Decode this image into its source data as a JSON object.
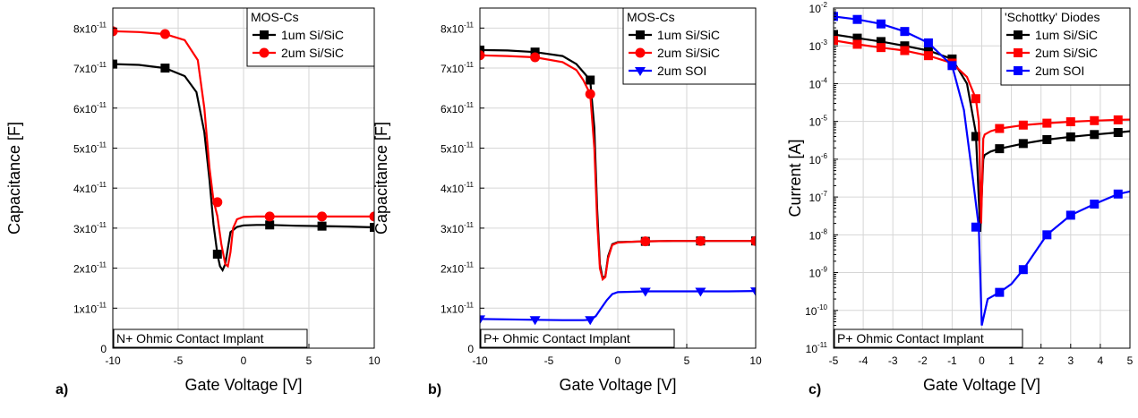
{
  "chart_data": [
    {
      "type": "line",
      "panel_label": "a)",
      "xlabel": "Gate Voltage [V]",
      "ylabel": "Capacitance [F]",
      "xlim": [
        -10,
        10
      ],
      "ylim": [
        0,
        8.5e-11
      ],
      "yscale": "linear",
      "grid": true,
      "x_ticks": [
        -10,
        -5,
        0,
        5,
        10
      ],
      "x_tick_labels": [
        "-10",
        "-5",
        "0",
        "5",
        "10"
      ],
      "y_ticks": [
        0,
        1e-11,
        2e-11,
        3e-11,
        4e-11,
        5e-11,
        6e-11,
        7e-11,
        8e-11
      ],
      "y_tick_labels": [
        {
          "base": "0",
          "exp": ""
        },
        {
          "base": "1x10",
          "exp": "-11"
        },
        {
          "base": "2x10",
          "exp": "-11"
        },
        {
          "base": "3x10",
          "exp": "-11"
        },
        {
          "base": "4x10",
          "exp": "-11"
        },
        {
          "base": "5x10",
          "exp": "-11"
        },
        {
          "base": "6x10",
          "exp": "-11"
        },
        {
          "base": "7x10",
          "exp": "-11"
        },
        {
          "base": "8x10",
          "exp": "-11"
        }
      ],
      "legend_title": "MOS-Cs",
      "legend_position": "top-right",
      "annotation": "N+ Ohmic Contact Implant",
      "series": [
        {
          "name": "1um Si/SiC",
          "color": "#000000",
          "marker": "square",
          "x": [
            -10,
            -8,
            -6,
            -4.5,
            -3.6,
            -3.0,
            -2.6,
            -2.3,
            -2.0,
            -1.8,
            -1.6,
            -1.4,
            -1.2,
            -1.0,
            -0.5,
            0,
            1,
            2,
            4,
            6,
            8,
            10
          ],
          "y": [
            7.1e-11,
            7.08e-11,
            7e-11,
            6.8e-11,
            6.4e-11,
            5.4e-11,
            4.2e-11,
            3.1e-11,
            2.35e-11,
            2.05e-11,
            1.95e-11,
            2.1e-11,
            2.5e-11,
            2.9e-11,
            3.03e-11,
            3.07e-11,
            3.08e-11,
            3.08e-11,
            3.06e-11,
            3.05e-11,
            3.04e-11,
            3.02e-11
          ],
          "markers_x": [
            -10,
            -6,
            -2,
            2,
            6,
            10
          ],
          "markers_y": [
            7.1e-11,
            7e-11,
            2.35e-11,
            3.08e-11,
            3.05e-11,
            3.02e-11
          ]
        },
        {
          "name": "2um Si/SiC",
          "color": "#ff0000",
          "marker": "circle",
          "x": [
            -10,
            -8,
            -6,
            -4.5,
            -3.5,
            -3.0,
            -2.6,
            -2.3,
            -2.0,
            -1.7,
            -1.4,
            -1.2,
            -1.0,
            -0.8,
            -0.5,
            0,
            1,
            2,
            4,
            6,
            8,
            10
          ],
          "y": [
            7.92e-11,
            7.9e-11,
            7.85e-11,
            7.7e-11,
            7.2e-11,
            6e-11,
            4.5e-11,
            3.7e-11,
            3.3e-11,
            2.6e-11,
            2.1e-11,
            2.05e-11,
            2.4e-11,
            3e-11,
            3.22e-11,
            3.28e-11,
            3.29e-11,
            3.29e-11,
            3.29e-11,
            3.29e-11,
            3.29e-11,
            3.29e-11
          ],
          "markers_x": [
            -10,
            -6,
            -2,
            2,
            6,
            10
          ],
          "markers_y": [
            7.92e-11,
            7.85e-11,
            3.65e-11,
            3.29e-11,
            3.29e-11,
            3.29e-11
          ]
        }
      ]
    },
    {
      "type": "line",
      "panel_label": "b)",
      "xlabel": "Gate Voltage [V]",
      "ylabel": "Capacitance [F]",
      "xlim": [
        -10,
        10
      ],
      "ylim": [
        0,
        8.5e-11
      ],
      "yscale": "linear",
      "grid": true,
      "x_ticks": [
        -10,
        -5,
        0,
        5,
        10
      ],
      "x_tick_labels": [
        "-10",
        "-5",
        "0",
        "5",
        "10"
      ],
      "y_ticks": [
        0,
        1e-11,
        2e-11,
        3e-11,
        4e-11,
        5e-11,
        6e-11,
        7e-11,
        8e-11
      ],
      "y_tick_labels": [
        {
          "base": "0",
          "exp": ""
        },
        {
          "base": "1x10",
          "exp": "-11"
        },
        {
          "base": "2x10",
          "exp": "-11"
        },
        {
          "base": "3x10",
          "exp": "-11"
        },
        {
          "base": "4x10",
          "exp": "-11"
        },
        {
          "base": "5x10",
          "exp": "-11"
        },
        {
          "base": "6x10",
          "exp": "-11"
        },
        {
          "base": "7x10",
          "exp": "-11"
        },
        {
          "base": "8x10",
          "exp": "-11"
        }
      ],
      "legend_title": "MOS-Cs",
      "legend_position": "top-right",
      "annotation": "P+ Ohmic Contact Implant",
      "series": [
        {
          "name": "1um Si/SiC",
          "color": "#000000",
          "marker": "square",
          "x": [
            -10,
            -8,
            -6,
            -4,
            -3,
            -2.5,
            -2.0,
            -1.7,
            -1.5,
            -1.3,
            -1.1,
            -0.9,
            -0.7,
            -0.4,
            0,
            1,
            2,
            4,
            6,
            8,
            10
          ],
          "y": [
            7.45e-11,
            7.44e-11,
            7.4e-11,
            7.3e-11,
            7.1e-11,
            6.9e-11,
            6.7e-11,
            5.5e-11,
            3.5e-11,
            2.1e-11,
            1.75e-11,
            1.8e-11,
            2.3e-11,
            2.6e-11,
            2.65e-11,
            2.66e-11,
            2.67e-11,
            2.68e-11,
            2.68e-11,
            2.68e-11,
            2.68e-11
          ],
          "markers_x": [
            -10,
            -6,
            -2,
            2,
            6,
            10
          ],
          "markers_y": [
            7.45e-11,
            7.4e-11,
            6.7e-11,
            2.67e-11,
            2.68e-11,
            2.68e-11
          ]
        },
        {
          "name": "2um Si/SiC",
          "color": "#ff0000",
          "marker": "circle",
          "x": [
            -10,
            -8,
            -6,
            -4,
            -3,
            -2.5,
            -2.0,
            -1.7,
            -1.5,
            -1.3,
            -1.1,
            -0.9,
            -0.7,
            -0.4,
            0,
            1,
            2,
            4,
            6,
            8,
            10
          ],
          "y": [
            7.32e-11,
            7.3e-11,
            7.27e-11,
            7.15e-11,
            6.95e-11,
            6.7e-11,
            6.35e-11,
            5e-11,
            3.2e-11,
            2e-11,
            1.72e-11,
            1.78e-11,
            2.25e-11,
            2.58e-11,
            2.64e-11,
            2.66e-11,
            2.67e-11,
            2.68e-11,
            2.68e-11,
            2.68e-11,
            2.68e-11
          ],
          "markers_x": [
            -10,
            -6,
            -2,
            2,
            6,
            10
          ],
          "markers_y": [
            7.32e-11,
            7.27e-11,
            6.35e-11,
            2.67e-11,
            2.68e-11,
            2.68e-11
          ]
        },
        {
          "name": "2um SOI",
          "color": "#0000ff",
          "marker": "triangle-down",
          "x": [
            -10,
            -8,
            -6,
            -4,
            -2.5,
            -2.0,
            -1.6,
            -1.2,
            -0.8,
            -0.4,
            0,
            1,
            2,
            4,
            6,
            8,
            10
          ],
          "y": [
            7.3e-12,
            7.2e-12,
            7.1e-12,
            7e-12,
            7e-12,
            7.1e-12,
            8e-12,
            1e-11,
            1.2e-11,
            1.35e-11,
            1.4e-11,
            1.41e-11,
            1.42e-11,
            1.42e-11,
            1.42e-11,
            1.42e-11,
            1.43e-11
          ],
          "markers_x": [
            -10,
            -6,
            -2,
            2,
            6,
            10
          ],
          "markers_y": [
            7.3e-12,
            7.1e-12,
            7.1e-12,
            1.42e-11,
            1.42e-11,
            1.43e-11
          ]
        }
      ]
    },
    {
      "type": "line",
      "panel_label": "c)",
      "xlabel": "Gate Voltage [V]",
      "ylabel": "Current [A]",
      "xlim": [
        -5,
        5
      ],
      "ylim": [
        1e-11,
        0.01
      ],
      "yscale": "log",
      "grid": true,
      "x_ticks": [
        -5,
        -4,
        -3,
        -2,
        -1,
        0,
        1,
        2,
        3,
        4,
        5
      ],
      "x_tick_labels": [
        "-5",
        "-4",
        "-3",
        "-2",
        "-1",
        "0",
        "1",
        "2",
        "3",
        "4",
        "5"
      ],
      "y_ticks": [
        -11,
        -10,
        -9,
        -8,
        -7,
        -6,
        -5,
        -4,
        -3,
        -2
      ],
      "y_tick_labels": [
        {
          "base": "10",
          "exp": "-11"
        },
        {
          "base": "10",
          "exp": "-10"
        },
        {
          "base": "10",
          "exp": "-9"
        },
        {
          "base": "10",
          "exp": "-8"
        },
        {
          "base": "10",
          "exp": "-7"
        },
        {
          "base": "10",
          "exp": "-6"
        },
        {
          "base": "10",
          "exp": "-5"
        },
        {
          "base": "10",
          "exp": "-4"
        },
        {
          "base": "10",
          "exp": "-3"
        },
        {
          "base": "10",
          "exp": "-2"
        }
      ],
      "legend_title": "'Schottky' Diodes",
      "legend_position": "top-right",
      "annotation": "P+ Ohmic Contact Implant",
      "series": [
        {
          "name": "1um Si/SiC",
          "color": "#000000",
          "marker": "square",
          "x": [
            -5,
            -4.2,
            -3.4,
            -2.6,
            -1.8,
            -1.0,
            -0.5,
            -0.2,
            -0.05,
            0.05,
            0.1,
            0.3,
            0.6,
            1.4,
            2.2,
            3.0,
            3.8,
            4.6,
            5
          ],
          "y": [
            0.002,
            0.0016,
            0.0013,
            0.001,
            0.00075,
            0.00045,
            0.0001,
            5e-06,
            1.2e-08,
            1e-06,
            1.3e-06,
            1.6e-06,
            1.9e-06,
            2.6e-06,
            3.3e-06,
            3.9e-06,
            4.5e-06,
            5.1e-06,
            5.5e-06
          ],
          "markers_x": [
            -5,
            -4.2,
            -3.4,
            -2.6,
            -1.8,
            -1.0,
            -0.2,
            0.6,
            1.4,
            2.2,
            3.0,
            3.8,
            4.6
          ],
          "markers_y": [
            0.002,
            0.0016,
            0.0013,
            0.001,
            0.00075,
            0.00045,
            4e-06,
            1.9e-06,
            2.6e-06,
            3.3e-06,
            3.9e-06,
            4.5e-06,
            5.1e-06
          ]
        },
        {
          "name": "2um Si/SiC",
          "color": "#ff0000",
          "marker": "square",
          "x": [
            -5,
            -4.2,
            -3.4,
            -2.6,
            -1.8,
            -1.0,
            -0.5,
            -0.2,
            -0.1,
            -0.02,
            0.05,
            0.1,
            0.3,
            0.6,
            1.4,
            2.2,
            3.0,
            3.8,
            4.6,
            5
          ],
          "y": [
            0.0014,
            0.0011,
            0.0009,
            0.00075,
            0.00055,
            0.00035,
            0.00015,
            4e-05,
            1e-05,
            2e-08,
            3.5e-06,
            4.5e-06,
            5.5e-06,
            6.5e-06,
            8e-06,
            9e-06,
            9.8e-06,
            1.05e-05,
            1.1e-05,
            1.12e-05
          ],
          "markers_x": [
            -5,
            -4.2,
            -3.4,
            -2.6,
            -1.8,
            -1.0,
            -0.2,
            0.6,
            1.4,
            2.2,
            3.0,
            3.8,
            4.6
          ],
          "markers_y": [
            0.0014,
            0.0011,
            0.0009,
            0.00075,
            0.00055,
            0.00035,
            4e-05,
            6.5e-06,
            8e-06,
            9e-06,
            9.8e-06,
            1.05e-05,
            1.1e-05
          ]
        },
        {
          "name": "2um SOI",
          "color": "#0000ff",
          "marker": "square",
          "x": [
            -5,
            -4.2,
            -3.4,
            -2.6,
            -1.8,
            -1.0,
            -0.6,
            -0.3,
            -0.1,
            0,
            0.2,
            0.6,
            1.0,
            1.4,
            1.8,
            2.2,
            3.0,
            3.8,
            4.6,
            5
          ],
          "y": [
            0.006,
            0.005,
            0.0038,
            0.0024,
            0.0012,
            0.0003,
            2e-05,
            3e-07,
            1.6e-08,
            4e-11,
            2e-10,
            3e-10,
            5e-10,
            1.2e-09,
            3.5e-09,
            1e-08,
            3.3e-08,
            6.5e-08,
            1.2e-07,
            1.4e-07
          ],
          "markers_x": [
            -5,
            -4.2,
            -3.4,
            -2.6,
            -1.8,
            -1.0,
            -0.2,
            0.6,
            1.4,
            2.2,
            3.0,
            3.8,
            4.6
          ],
          "markers_y": [
            0.006,
            0.005,
            0.0038,
            0.0024,
            0.0012,
            0.0003,
            1.6e-08,
            3e-10,
            1.2e-09,
            1e-08,
            3.3e-08,
            6.5e-08,
            1.2e-07
          ]
        }
      ]
    }
  ]
}
